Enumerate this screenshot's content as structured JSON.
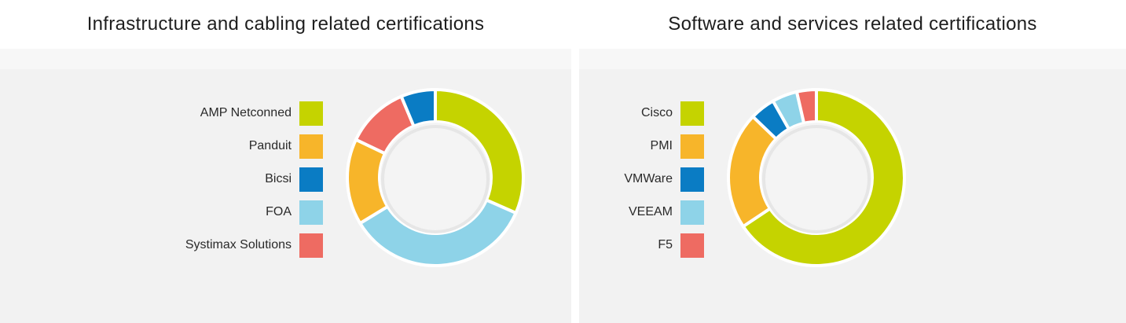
{
  "chart_data": [
    {
      "type": "pie",
      "title": "Infrastructure and cabling related certifications",
      "categories": [
        "AMP Netconned",
        "Panduit",
        "Bicsi",
        "FOA",
        "Systimax Solutions"
      ],
      "values": [
        30,
        15,
        6,
        33,
        11
      ],
      "slice_order": [
        "AMP Netconned",
        "FOA",
        "Panduit",
        "Systimax Solutions",
        "Bicsi"
      ],
      "colors": {
        "AMP Netconned": "#c5d300",
        "Panduit": "#f7b52a",
        "Bicsi": "#0a7cc4",
        "FOA": "#8ed3e8",
        "Systimax Solutions": "#ee6b62"
      },
      "legend": "left"
    },
    {
      "type": "pie",
      "title": "Software and services related certifications",
      "categories": [
        "Cisco",
        "PMI",
        "VMWare",
        "VEEAM",
        "F5"
      ],
      "values": [
        64,
        21,
        4.5,
        4.5,
        3.5
      ],
      "slice_order": [
        "Cisco",
        "PMI",
        "VMWare",
        "VEEAM",
        "F5"
      ],
      "colors": {
        "Cisco": "#c5d300",
        "PMI": "#f7b52a",
        "VMWare": "#0a7cc4",
        "VEEAM": "#8ed3e8",
        "F5": "#ee6b62"
      },
      "legend": "left"
    }
  ]
}
